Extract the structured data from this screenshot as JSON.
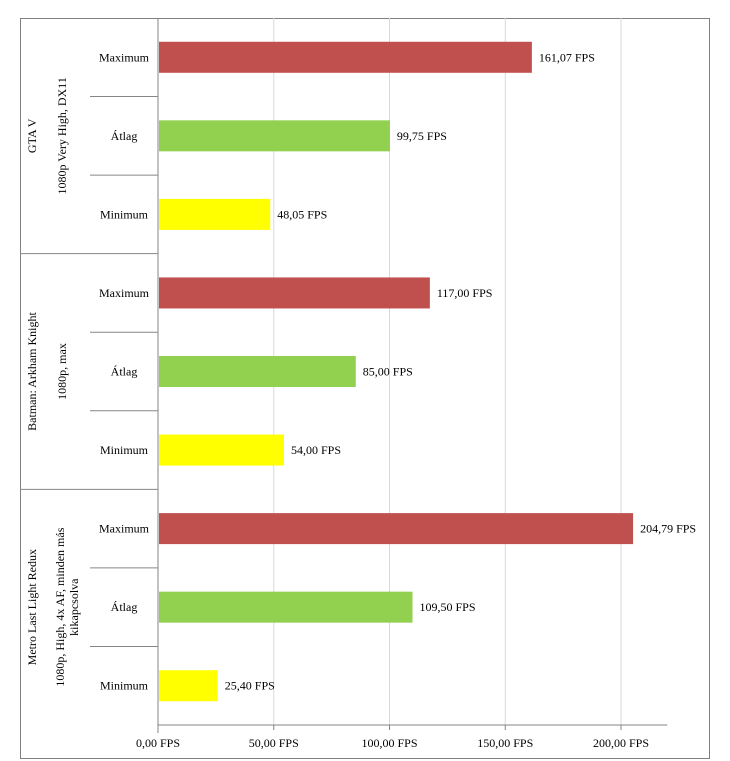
{
  "chart_data": {
    "type": "bar",
    "orientation": "horizontal",
    "title": "",
    "xlabel": "",
    "ylabel": "",
    "xlim": [
      0,
      220
    ],
    "grid": true,
    "legend": "none",
    "unit_suffix": " FPS",
    "x_ticks": [
      {
        "value": 0,
        "label": "0,00 FPS"
      },
      {
        "value": 50,
        "label": "50,00 FPS"
      },
      {
        "value": 100,
        "label": "100,00 FPS"
      },
      {
        "value": 150,
        "label": "150,00 FPS"
      },
      {
        "value": 200,
        "label": "200,00 FPS"
      }
    ],
    "colors": {
      "Maximum": "#c0504d",
      "Átlag": "#92d050",
      "Minimum": "#ffff00"
    },
    "groups": [
      {
        "name": "GTA V",
        "setting": "1080p Very High, DX11",
        "bars": [
          {
            "category": "Maximum",
            "value": 161.07,
            "label": "161,07  FPS"
          },
          {
            "category": "Átlag",
            "value": 99.75,
            "label": "99,75  FPS"
          },
          {
            "category": "Minimum",
            "value": 48.05,
            "label": "48,05  FPS"
          }
        ]
      },
      {
        "name": "Batman: Arkham Knight",
        "setting": "1080p, max",
        "bars": [
          {
            "category": "Maximum",
            "value": 117.0,
            "label": "117,00  FPS"
          },
          {
            "category": "Átlag",
            "value": 85.0,
            "label": "85,00  FPS"
          },
          {
            "category": "Minimum",
            "value": 54.0,
            "label": "54,00  FPS"
          }
        ]
      },
      {
        "name": "Metro Last Light Redux",
        "setting": "1080p, High, 4x AF, minden más kikapcsolva",
        "bars": [
          {
            "category": "Maximum",
            "value": 204.79,
            "label": "204,79  FPS"
          },
          {
            "category": "Átlag",
            "value": 109.5,
            "label": "109,50  FPS"
          },
          {
            "category": "Minimum",
            "value": 25.4,
            "label": "25,40  FPS"
          }
        ]
      }
    ]
  }
}
